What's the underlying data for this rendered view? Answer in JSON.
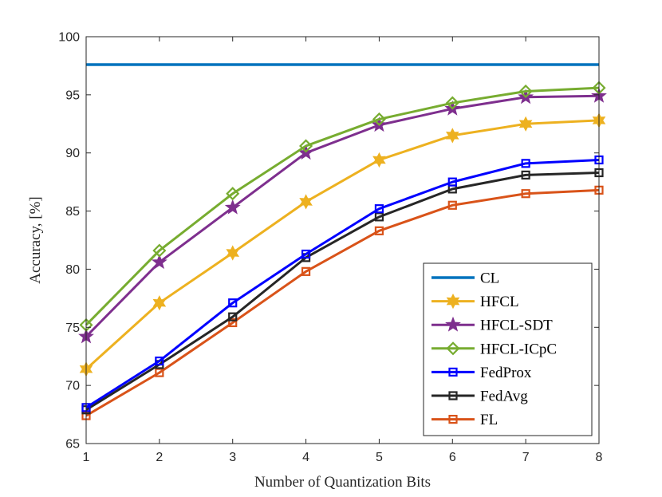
{
  "chart_data": {
    "type": "line",
    "title": "",
    "xlabel": "Number of Quantization Bits",
    "ylabel": "Accuracy, [%]",
    "xlim": [
      1,
      8
    ],
    "ylim": [
      65,
      100
    ],
    "x": [
      1,
      2,
      3,
      4,
      5,
      6,
      7,
      8
    ],
    "xticks": [
      "1",
      "2",
      "3",
      "4",
      "5",
      "6",
      "7",
      "8"
    ],
    "yticks": [
      "65",
      "70",
      "75",
      "80",
      "85",
      "90",
      "95",
      "100"
    ],
    "grid": false,
    "legend_position": "bottom-right",
    "series": [
      {
        "name": "CL",
        "color": "#0072BD",
        "marker": "none",
        "values": [
          97.6,
          97.6,
          97.6,
          97.6,
          97.6,
          97.6,
          97.6,
          97.6
        ]
      },
      {
        "name": "HFCL",
        "color": "#EDB120",
        "marker": "hexagram",
        "values": [
          71.4,
          77.1,
          81.4,
          85.8,
          89.4,
          91.5,
          92.5,
          92.8
        ]
      },
      {
        "name": "HFCL-SDT",
        "color": "#7E2F8E",
        "marker": "pentagram",
        "values": [
          74.2,
          80.6,
          85.3,
          90.0,
          92.4,
          93.8,
          94.8,
          94.9
        ]
      },
      {
        "name": "HFCL-ICpC",
        "color": "#77AC30",
        "marker": "diamond",
        "values": [
          75.2,
          81.6,
          86.5,
          90.6,
          92.9,
          94.3,
          95.3,
          95.6
        ]
      },
      {
        "name": "FedProx",
        "color": "#0000FF",
        "marker": "square",
        "values": [
          68.1,
          72.1,
          77.1,
          81.3,
          85.2,
          87.5,
          89.1,
          89.4
        ]
      },
      {
        "name": "FedAvg",
        "color": "#262626",
        "marker": "square",
        "values": [
          67.9,
          71.8,
          75.9,
          81.0,
          84.5,
          86.9,
          88.1,
          88.3
        ]
      },
      {
        "name": "FL",
        "color": "#D95319",
        "marker": "square",
        "values": [
          67.4,
          71.1,
          75.4,
          79.8,
          83.3,
          85.5,
          86.5,
          86.8
        ]
      }
    ]
  }
}
